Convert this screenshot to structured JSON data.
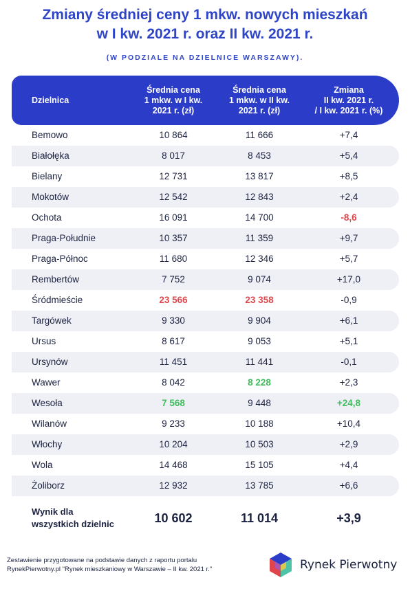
{
  "title_line1": "Zmiany średniej ceny 1 mkw. nowych mieszkań",
  "title_line2": "w I kw. 2021 r. oraz II kw. 2021 r.",
  "subtitle": "(W PODZIALE NA DZIELNICE WARSZAWY).",
  "header": {
    "col0": "Dzielnica",
    "col1_l1": "Średnia cena",
    "col1_l2": "1 mkw. w I kw.",
    "col1_l3": "2021 r. (zł)",
    "col2_l1": "Średnia cena",
    "col2_l2": "1 mkw. w II kw.",
    "col2_l3": "2021 r. (zł)",
    "col3_l1": "Zmiana",
    "col3_l2": "II kw. 2021 r.",
    "col3_l3": "/ I kw. 2021 r. (%)"
  },
  "rows": [
    {
      "district": "Bemowo",
      "q1": "10 864",
      "q2": "11 666",
      "change": "+7,4"
    },
    {
      "district": "Białołęka",
      "q1": "8 017",
      "q2": "8 453",
      "change": "+5,4"
    },
    {
      "district": "Bielany",
      "q1": "12 731",
      "q2": "13 817",
      "change": "+8,5"
    },
    {
      "district": "Mokotów",
      "q1": "12 542",
      "q2": "12 843",
      "change": "+2,4"
    },
    {
      "district": "Ochota",
      "q1": "16 091",
      "q2": "14 700",
      "change": "-8,6"
    },
    {
      "district": "Praga-Południe",
      "q1": "10 357",
      "q2": "11 359",
      "change": "+9,7"
    },
    {
      "district": "Praga-Północ",
      "q1": "11 680",
      "q2": "12 346",
      "change": "+5,7"
    },
    {
      "district": "Rembertów",
      "q1": "7 752",
      "q2": "9 074",
      "change": "+17,0"
    },
    {
      "district": "Śródmieście",
      "q1": "23 566",
      "q2": "23 358",
      "change": "-0,9"
    },
    {
      "district": "Targówek",
      "q1": "9 330",
      "q2": "9 904",
      "change": "+6,1"
    },
    {
      "district": "Ursus",
      "q1": "8 617",
      "q2": "9 053",
      "change": "+5,1"
    },
    {
      "district": "Ursynów",
      "q1": "11 451",
      "q2": "11 441",
      "change": "-0,1"
    },
    {
      "district": "Wawer",
      "q1": "8 042",
      "q2": "8 228",
      "change": "+2,3"
    },
    {
      "district": "Wesoła",
      "q1": "7 568",
      "q2": "9 448",
      "change": "+24,8"
    },
    {
      "district": "Wilanów",
      "q1": "9 233",
      "q2": "10 188",
      "change": "+10,4"
    },
    {
      "district": "Włochy",
      "q1": "10 204",
      "q2": "10 503",
      "change": "+2,9"
    },
    {
      "district": "Wola",
      "q1": "14 468",
      "q2": "15 105",
      "change": "+4,4"
    },
    {
      "district": "Żoliborz",
      "q1": "12 932",
      "q2": "13 785",
      "change": "+6,6"
    }
  ],
  "summary": {
    "label_l1": "Wynik dla",
    "label_l2": "wszystkich dzielnic",
    "q1": "10 602",
    "q2": "11 014",
    "change": "+3,9"
  },
  "footer": {
    "line1": "Zestawienie przygotowane na podstawie danych z raportu portalu",
    "line2": "RynekPierwotny.pl \"Rynek mieszkaniowy w Warszawie – II kw. 2021 r.\""
  },
  "logo_text": "Rynek Pierwotny",
  "colors": {
    "accent": "#2b3cc8",
    "title": "#2f45c7",
    "red": "#e0454b",
    "green": "#3fbd5c",
    "row_shade": "#eff0f6"
  }
}
